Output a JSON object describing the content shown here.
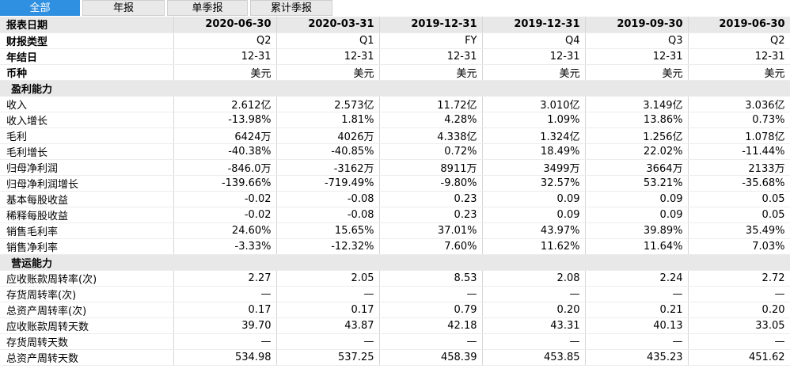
{
  "tabs": [
    "全部",
    "年报",
    "单季报",
    "累计季报"
  ],
  "header": {
    "label": "报表日期",
    "dates": [
      "2020-06-30",
      "2020-03-31",
      "2019-12-31",
      "2019-12-31",
      "2019-09-30",
      "2019-06-30"
    ]
  },
  "info_rows": [
    {
      "label": "财报类型",
      "values": [
        "Q2",
        "Q1",
        "FY",
        "Q4",
        "Q3",
        "Q2"
      ]
    },
    {
      "label": "年结日",
      "values": [
        "12-31",
        "12-31",
        "12-31",
        "12-31",
        "12-31",
        "12-31"
      ]
    },
    {
      "label": "币种",
      "values": [
        "美元",
        "美元",
        "美元",
        "美元",
        "美元",
        "美元"
      ]
    }
  ],
  "section1": {
    "title": "盈利能力",
    "rows": [
      {
        "label": "收入",
        "values": [
          "2.612亿",
          "2.573亿",
          "11.72亿",
          "3.010亿",
          "3.149亿",
          "3.036亿"
        ]
      },
      {
        "label": "收入增长",
        "values": [
          "-13.98%",
          "1.81%",
          "4.28%",
          "1.09%",
          "13.86%",
          "0.73%"
        ]
      },
      {
        "label": "毛利",
        "values": [
          "6424万",
          "4026万",
          "4.338亿",
          "1.324亿",
          "1.256亿",
          "1.078亿"
        ]
      },
      {
        "label": "毛利增长",
        "values": [
          "-40.38%",
          "-40.85%",
          "0.72%",
          "18.49%",
          "22.02%",
          "-11.44%"
        ]
      },
      {
        "label": "归母净利润",
        "values": [
          "-846.0万",
          "-3162万",
          "8911万",
          "3499万",
          "3664万",
          "2133万"
        ]
      },
      {
        "label": "归母净利润增长",
        "values": [
          "-139.66%",
          "-719.49%",
          "-9.80%",
          "32.57%",
          "53.21%",
          "-35.68%"
        ]
      },
      {
        "label": "基本每股收益",
        "values": [
          "-0.02",
          "-0.08",
          "0.23",
          "0.09",
          "0.09",
          "0.05"
        ]
      },
      {
        "label": "稀释每股收益",
        "values": [
          "-0.02",
          "-0.08",
          "0.23",
          "0.09",
          "0.09",
          "0.05"
        ]
      },
      {
        "label": "销售毛利率",
        "values": [
          "24.60%",
          "15.65%",
          "37.01%",
          "43.97%",
          "39.89%",
          "35.49%"
        ]
      },
      {
        "label": "销售净利率",
        "values": [
          "-3.33%",
          "-12.32%",
          "7.60%",
          "11.62%",
          "11.64%",
          "7.03%"
        ]
      }
    ]
  },
  "section2": {
    "title": "营运能力",
    "rows": [
      {
        "label": "应收账款周转率(次)",
        "values": [
          "2.27",
          "2.05",
          "8.53",
          "2.08",
          "2.24",
          "2.72"
        ]
      },
      {
        "label": "存货周转率(次)",
        "values": [
          "—",
          "—",
          "—",
          "—",
          "—",
          "—"
        ]
      },
      {
        "label": "总资产周转率(次)",
        "values": [
          "0.17",
          "0.17",
          "0.79",
          "0.20",
          "0.21",
          "0.20"
        ]
      },
      {
        "label": "应收账款周转天数",
        "values": [
          "39.70",
          "43.87",
          "42.18",
          "43.31",
          "40.13",
          "33.05"
        ]
      },
      {
        "label": "存货周转天数",
        "values": [
          "—",
          "—",
          "—",
          "—",
          "—",
          "—"
        ]
      },
      {
        "label": "总资产周转天数",
        "values": [
          "534.98",
          "537.25",
          "458.39",
          "453.85",
          "435.23",
          "451.62"
        ]
      }
    ]
  }
}
